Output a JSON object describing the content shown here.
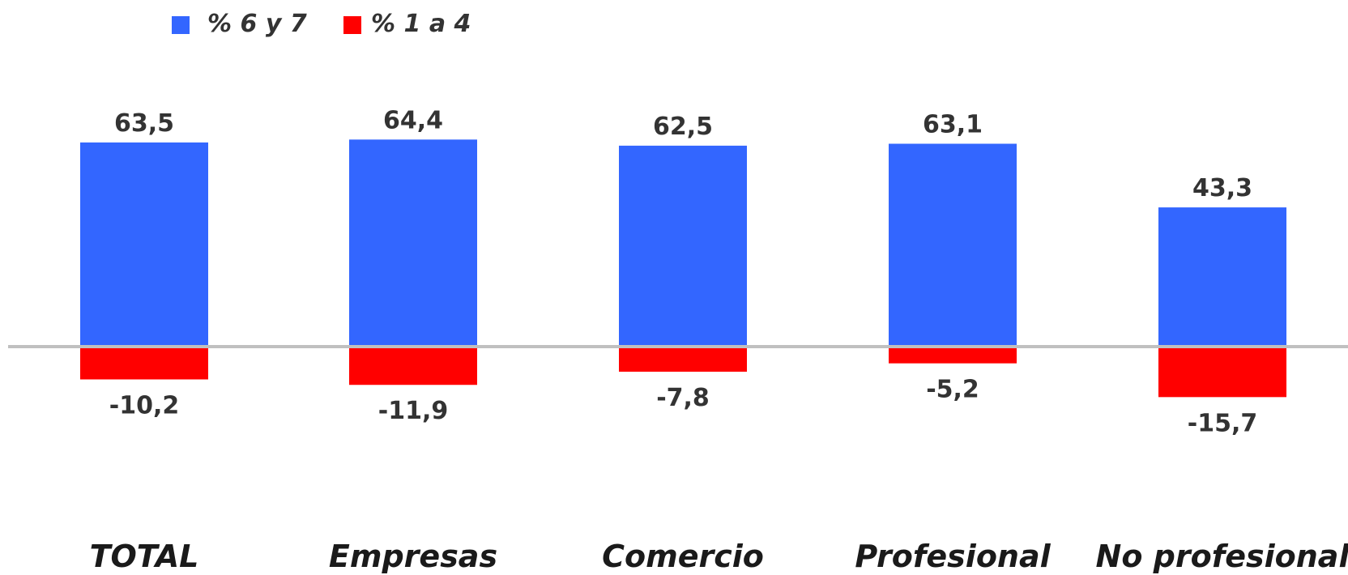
{
  "chart_data": {
    "type": "bar",
    "stacked_diverging": true,
    "categories": [
      "TOTAL",
      "Empresas",
      "Comercio",
      "Profesional",
      "No profesional"
    ],
    "series": [
      {
        "name": "% 6 y 7",
        "color": "#3366ff",
        "values": [
          63.5,
          64.4,
          62.5,
          63.1,
          43.3
        ]
      },
      {
        "name": "% 1 a 4",
        "color": "#ff0000",
        "values": [
          -10.2,
          -11.9,
          -7.8,
          -5.2,
          -15.7
        ]
      }
    ],
    "data_labels": {
      "positive": [
        "63,5",
        "64,4",
        "62,5",
        "63,1",
        "43,3"
      ],
      "negative": [
        "-10,2",
        "-11,9",
        "-7,8",
        "-5,2",
        "-15,7"
      ]
    },
    "zero_line_color": "#c0c0c0",
    "legend_position": "top-left",
    "grid": false,
    "axes_visible": false
  }
}
